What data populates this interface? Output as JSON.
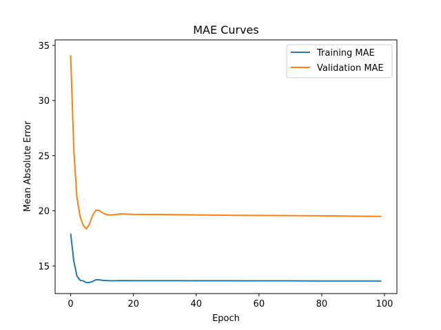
{
  "chart_data": {
    "type": "line",
    "title": "MAE Curves",
    "xlabel": "Epoch",
    "ylabel": "Mean Absolute Error",
    "xlim": [
      -4.95,
      103.95
    ],
    "ylim": [
      12.5,
      35.5
    ],
    "xticks": [
      0,
      20,
      40,
      60,
      80,
      100
    ],
    "yticks": [
      15,
      20,
      25,
      30,
      35
    ],
    "grid": false,
    "legend_position": "top-right",
    "series": [
      {
        "name": "Training MAE",
        "color": "#1f77b4",
        "x": [
          0,
          1,
          2,
          3,
          4,
          5,
          6,
          7,
          8,
          9,
          10,
          12,
          14,
          16,
          20,
          30,
          40,
          50,
          60,
          70,
          80,
          90,
          99
        ],
        "y": [
          17.95,
          15.45,
          14.1,
          13.7,
          13.65,
          13.5,
          13.5,
          13.6,
          13.75,
          13.75,
          13.7,
          13.67,
          13.66,
          13.68,
          13.67,
          13.67,
          13.66,
          13.66,
          13.65,
          13.65,
          13.64,
          13.64,
          13.64
        ]
      },
      {
        "name": "Validation MAE",
        "color": "#ff7f0e",
        "x": [
          0,
          1,
          2,
          3,
          4,
          5,
          6,
          7,
          8,
          9,
          10,
          11,
          12,
          14,
          16,
          20,
          30,
          40,
          50,
          60,
          70,
          80,
          90,
          99
        ],
        "y": [
          34.1,
          25.5,
          21.2,
          19.5,
          18.7,
          18.35,
          18.8,
          19.6,
          20.05,
          20.05,
          19.85,
          19.7,
          19.62,
          19.65,
          19.72,
          19.68,
          19.66,
          19.63,
          19.6,
          19.58,
          19.57,
          19.55,
          19.52,
          19.5
        ]
      }
    ]
  }
}
